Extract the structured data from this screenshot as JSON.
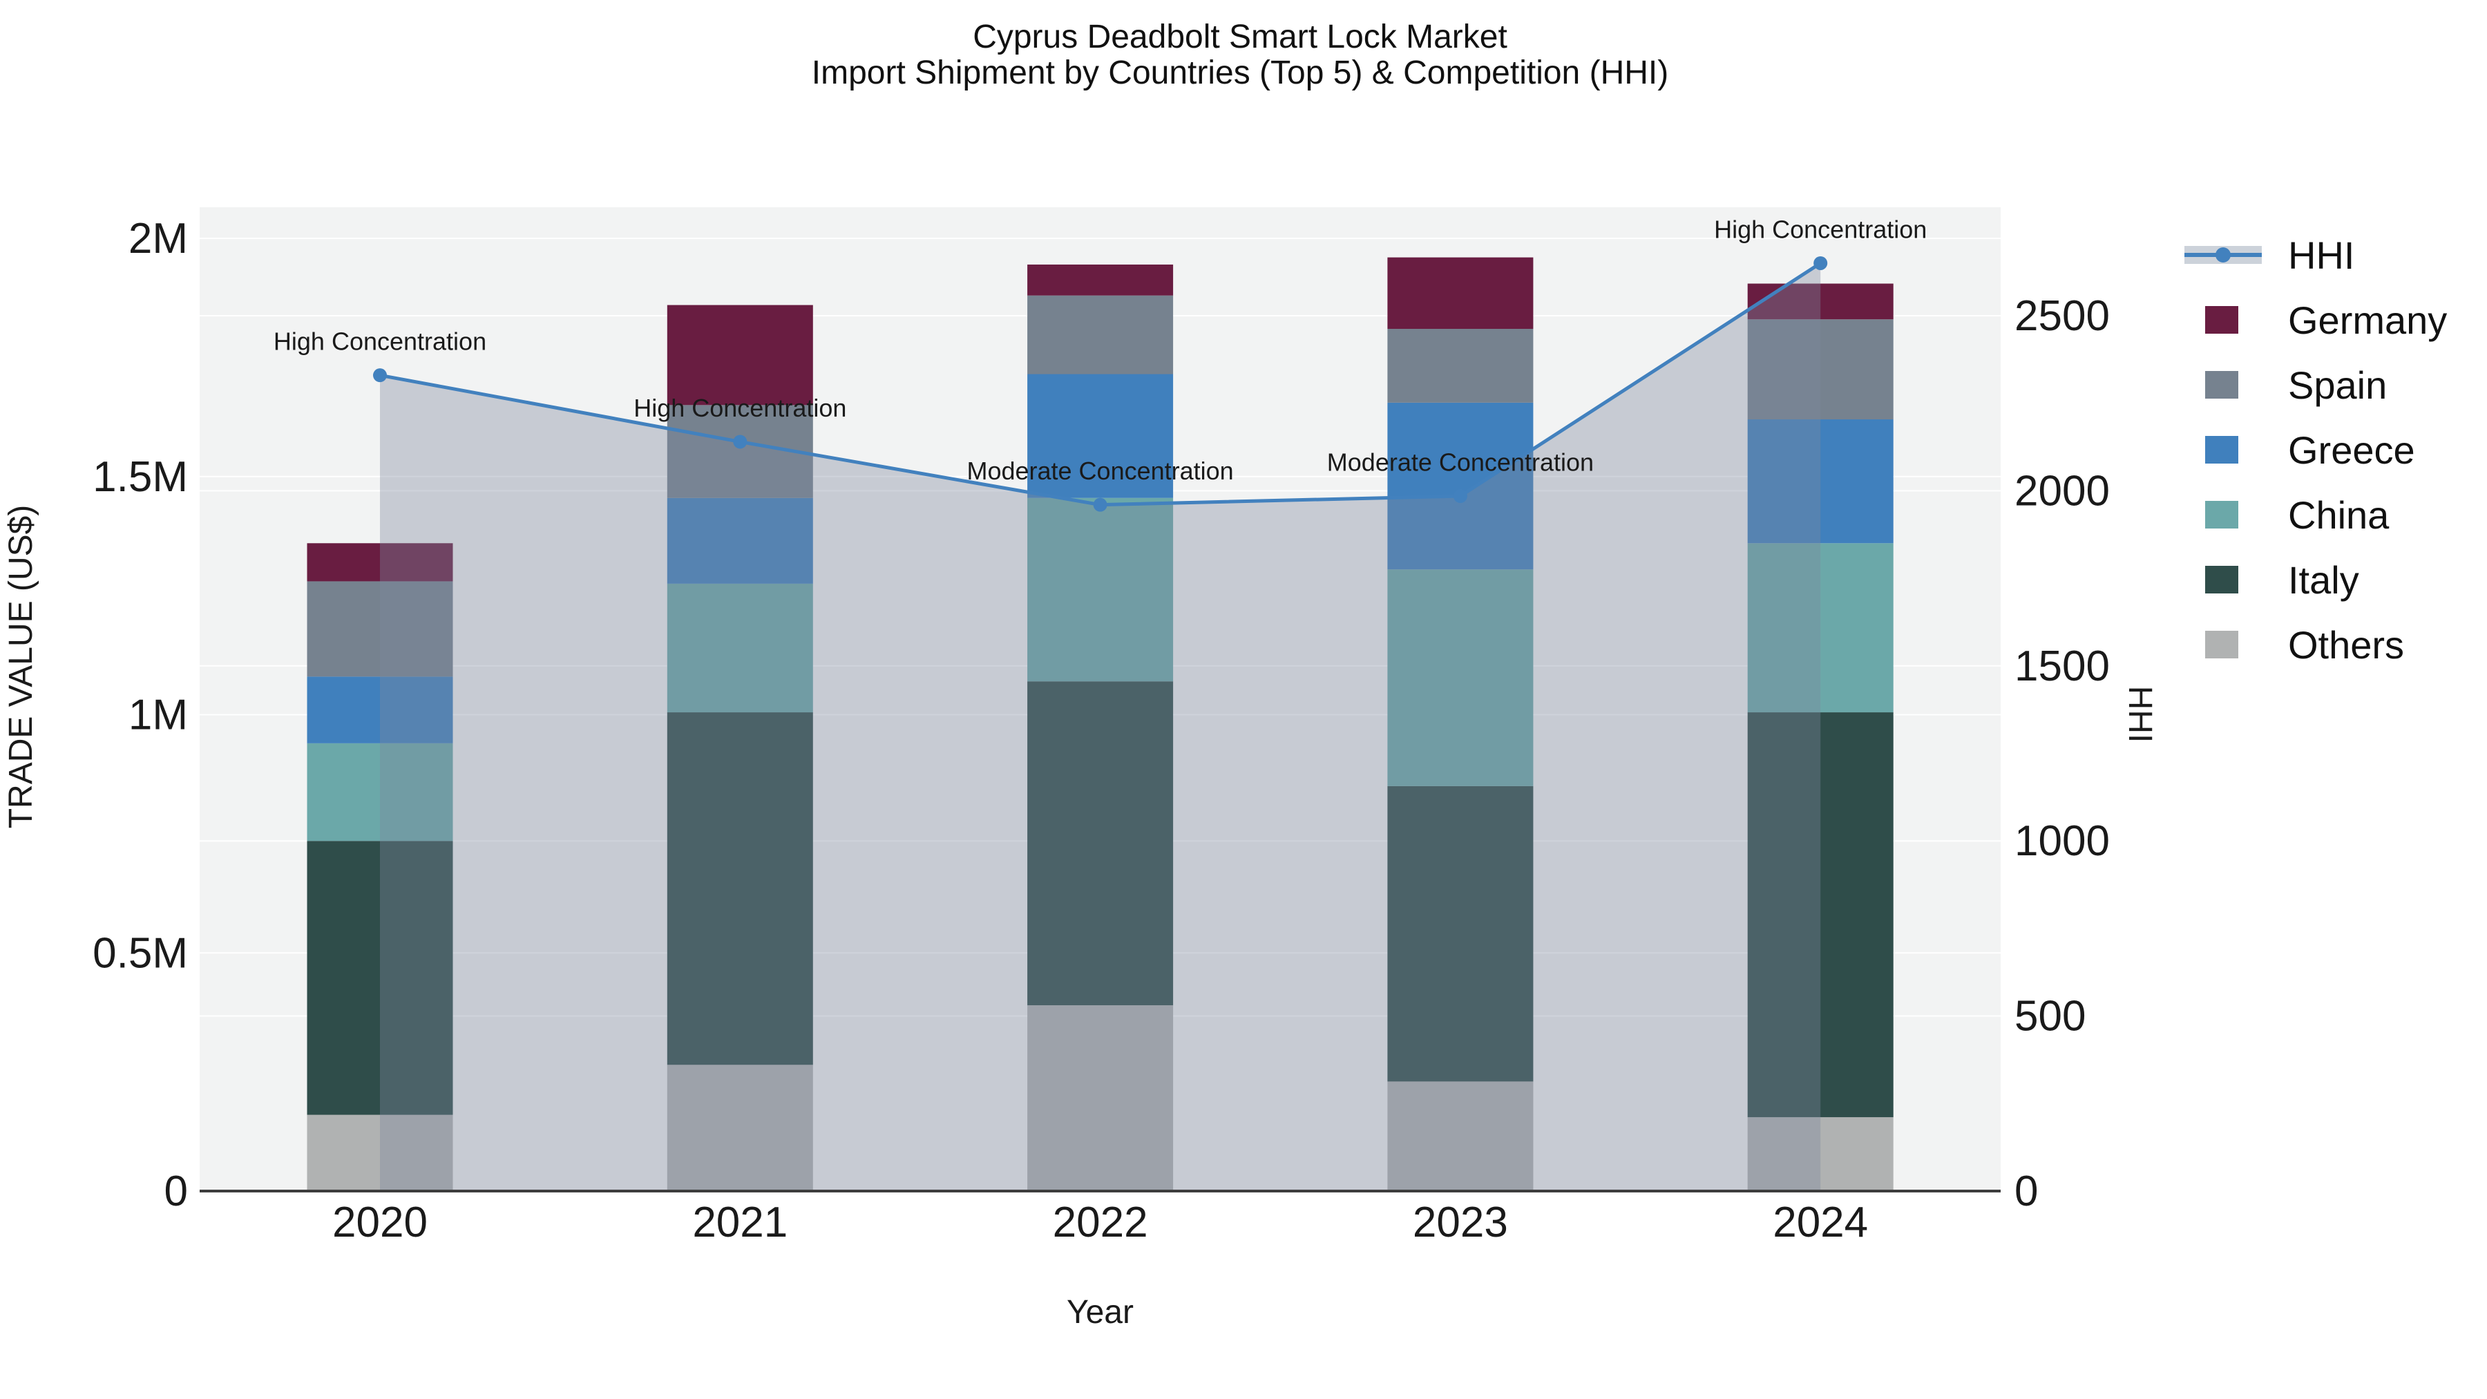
{
  "title": {
    "line1": "Cyprus Deadbolt Smart Lock Market",
    "line2": "Import Shipment by Countries (Top 5) & Competition (HHI)"
  },
  "chart_data": {
    "type": "bar+line",
    "bar_mode": "stacked",
    "categories": [
      "2020",
      "2021",
      "2022",
      "2023",
      "2024"
    ],
    "series": [
      {
        "name": "Others",
        "color": "#b0b2b2",
        "values": [
          160000,
          265000,
          390000,
          230000,
          155000
        ]
      },
      {
        "name": "Italy",
        "color": "#2f4d4a",
        "values": [
          575000,
          740000,
          680000,
          620000,
          850000
        ]
      },
      {
        "name": "China",
        "color": "#6ba8a9",
        "values": [
          205000,
          270000,
          385000,
          455000,
          355000
        ]
      },
      {
        "name": "Greece",
        "color": "#4080bd",
        "values": [
          140000,
          180000,
          260000,
          350000,
          260000
        ]
      },
      {
        "name": "Spain",
        "color": "#76828f",
        "values": [
          200000,
          195000,
          165000,
          155000,
          210000
        ]
      },
      {
        "name": "Germany",
        "color": "#691d41",
        "values": [
          80000,
          210000,
          65000,
          150000,
          75000
        ]
      }
    ],
    "bar_totals": [
      1360000,
      1860000,
      1945000,
      1960000,
      1905000
    ],
    "line_series": {
      "name": "HHI",
      "color": "#4281be",
      "area_color": "rgba(124,135,157,0.37)",
      "values": [
        2330,
        2140,
        1960,
        1985,
        2650
      ],
      "annotations": [
        "High Concentration",
        "High Concentration",
        "Moderate Concentration",
        "Moderate Concentration",
        "High Concentration"
      ]
    },
    "left_axis": {
      "title": "TRADE VALUE (US$)",
      "tick_labels": [
        "0",
        "0.5M",
        "1M",
        "1.5M",
        "2M"
      ],
      "tick_values": [
        0,
        500000,
        1000000,
        1500000,
        2000000
      ],
      "range": [
        0,
        2065000
      ]
    },
    "right_axis": {
      "title": "HHI",
      "tick_labels": [
        "0",
        "500",
        "1000",
        "1500",
        "2000",
        "2500"
      ],
      "tick_values": [
        0,
        500,
        1000,
        1500,
        2000,
        2500
      ],
      "range": [
        0,
        2810
      ]
    },
    "x_axis": {
      "title": "Year"
    },
    "legend_order": [
      "HHI",
      "Germany",
      "Spain",
      "Greece",
      "China",
      "Italy",
      "Others"
    ],
    "panel_color": "#f2f3f3",
    "grid_color": "#ffffff",
    "axisline_color": "#3d3d3d"
  }
}
